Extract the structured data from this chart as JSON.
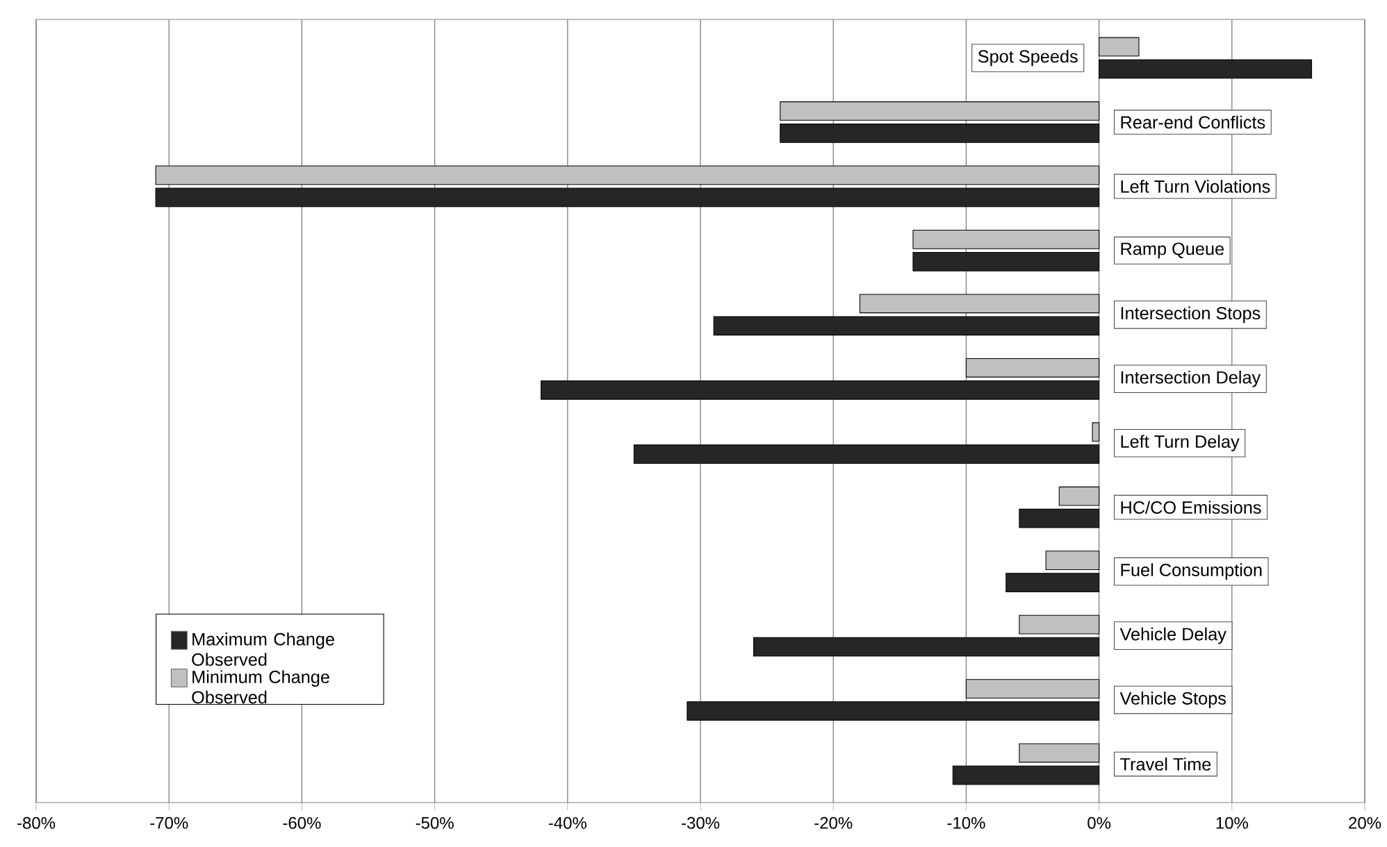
{
  "chart_data": {
    "type": "bar",
    "orientation": "horizontal",
    "categories": [
      "Spot Speeds",
      "Rear-end Conflicts",
      "Left Turn Violations",
      "Ramp Queue",
      "Intersection Stops",
      "Intersection Delay",
      "Left Turn Delay",
      "HC/CO Emissions",
      "Fuel Consumption",
      "Vehicle Delay",
      "Vehicle Stops",
      "Travel Time"
    ],
    "series": [
      {
        "name": "Maximum Change Observed",
        "color": "#262626",
        "values": [
          16,
          -24,
          -71,
          -14,
          -29,
          -42,
          -35,
          -6,
          -7,
          -26,
          -31,
          -11
        ]
      },
      {
        "name": "Minimum Change Observed",
        "color": "#c0c0c0",
        "values": [
          3,
          -24,
          -71,
          -14,
          -18,
          -10,
          -0.5,
          -3,
          -4,
          -6,
          -10,
          -6
        ]
      }
    ],
    "xlim": [
      -80,
      20
    ],
    "xticks": [
      {
        "value": -80,
        "label": "-80%"
      },
      {
        "value": -70,
        "label": "-70%"
      },
      {
        "value": -60,
        "label": "-60%"
      },
      {
        "value": -50,
        "label": "-50%"
      },
      {
        "value": -40,
        "label": "-40%"
      },
      {
        "value": -30,
        "label": "-30%"
      },
      {
        "value": -20,
        "label": "-20%"
      },
      {
        "value": -10,
        "label": "-10%"
      },
      {
        "value": 0,
        "label": "0%"
      },
      {
        "value": 10,
        "label": "10%"
      },
      {
        "value": 20,
        "label": "20%"
      }
    ],
    "grid": "x",
    "legend": "bottom left"
  }
}
